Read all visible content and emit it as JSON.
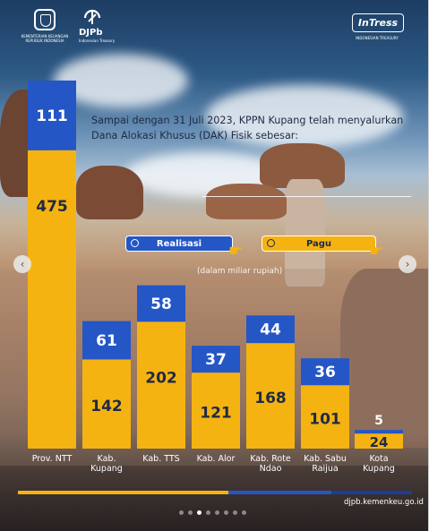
{
  "header": {
    "ministry_line1": "KEMENTERIAN KEUANGAN",
    "ministry_line2": "REPUBLIK INDONESIA",
    "djpb_title": "DJPb",
    "djpb_sub": "Indonesian Treasury",
    "intress_title": "InTress",
    "intress_sub": "INDONESIAN TREASURY"
  },
  "headline": "Sampai dengan 31 Juli 2023, KPPN Kupang telah menyalurkan Dana Alokasi Khusus (DAK) Fisik sebesar:",
  "legend": {
    "realisasi": "Realisasi",
    "pagu": "Pagu",
    "unit_note": "(dalam miliar rupiah)"
  },
  "colors": {
    "realisasi": "#2456c6",
    "pagu": "#f5b312"
  },
  "chart_data": {
    "type": "bar",
    "categories": [
      "Prov. NTT",
      "Kab. Kupang",
      "Kab. TTS",
      "Kab. Alor",
      "Kab. Rote Ndao",
      "Kab. Sabu Raijua",
      "Kota Kupang"
    ],
    "category_lines": [
      [
        "Prov. NTT"
      ],
      [
        "Kab.",
        "Kupang"
      ],
      [
        "Kab. TTS"
      ],
      [
        "Kab. Alor"
      ],
      [
        "Kab. Rote",
        "Ndao"
      ],
      [
        "Kab. Sabu",
        "Raijua"
      ],
      [
        "Kota",
        "Kupang"
      ]
    ],
    "series": [
      {
        "name": "Realisasi",
        "values": [
          111,
          61,
          58,
          37,
          44,
          36,
          5
        ]
      },
      {
        "name": "Pagu",
        "values": [
          475,
          142,
          202,
          121,
          168,
          101,
          24
        ]
      }
    ],
    "ylabel": "",
    "unit": "(dalam miliar rupiah)"
  },
  "footer": {
    "website": "djpb.kemenkeu.go.id",
    "carousel_pages": 8,
    "carousel_active": 3
  },
  "nav": {
    "prev_icon": "chevron-left-icon",
    "next_icon": "chevron-right-icon"
  }
}
